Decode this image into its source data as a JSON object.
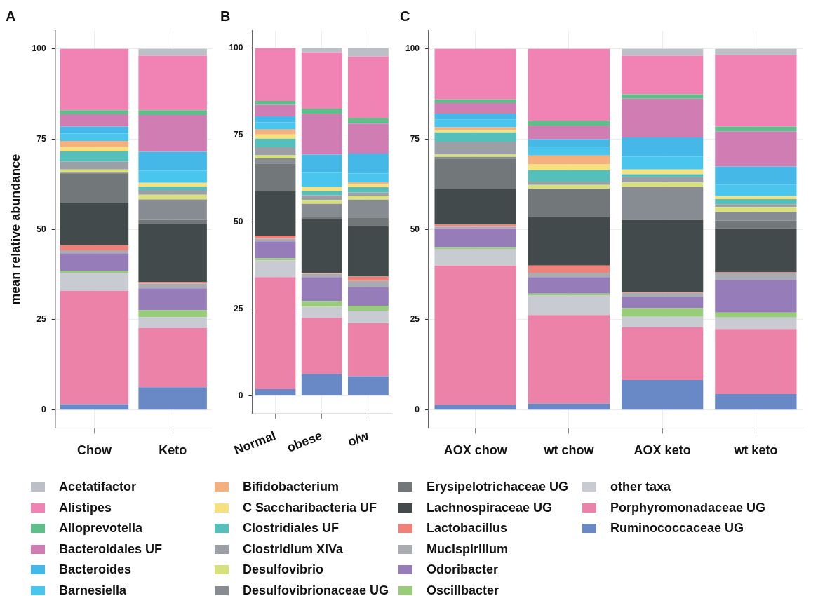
{
  "chart_data": [
    {
      "type": "bar",
      "title": "A",
      "ylabel": "mean relative abundance",
      "categories": [
        "Chow",
        "Keto"
      ],
      "stacked": true,
      "ylim": [
        -5,
        105
      ],
      "yticks": [
        0,
        25,
        50,
        75,
        100
      ],
      "grid": true,
      "legend": "bottom",
      "series": [
        {
          "name": "Ruminococcaceae UG",
          "color": "#6889c6",
          "values": [
            1.6,
            6.3
          ]
        },
        {
          "name": "Porphyromonadaceae UG",
          "color": "#ec82a8",
          "values": [
            31.4,
            16.4
          ]
        },
        {
          "name": "other taxa",
          "color": "#c8ccd2",
          "values": [
            5.0,
            3.0
          ]
        },
        {
          "name": "Oscillbacter",
          "color": "#98cb7a",
          "values": [
            0.6,
            1.9
          ]
        },
        {
          "name": "Odoribacter",
          "color": "#967cb8",
          "values": [
            4.8,
            6.1
          ]
        },
        {
          "name": "Mucispirillum",
          "color": "#a8acb0",
          "values": [
            0.8,
            1.3
          ]
        },
        {
          "name": "Lactobacillus",
          "color": "#f08078",
          "values": [
            1.4,
            0.4
          ]
        },
        {
          "name": "Lachnospiraceae UG",
          "color": "#434a4c",
          "values": [
            11.8,
            16.0
          ]
        },
        {
          "name": "Erysipelotrichaceae UG",
          "color": "#727779",
          "values": [
            8.0,
            1.2
          ]
        },
        {
          "name": "Desulfovibrionaceae UG",
          "color": "#878c93",
          "values": [
            0.3,
            5.7
          ]
        },
        {
          "name": "Desulfovibrio",
          "color": "#d8e07e",
          "values": [
            0.9,
            1.3
          ]
        },
        {
          "name": "Clostridium XIVa",
          "color": "#9aa0a6",
          "values": [
            2.2,
            1.3
          ]
        },
        {
          "name": "Clostridiales UF",
          "color": "#55c0bb",
          "values": [
            2.8,
            1.0
          ]
        },
        {
          "name": "C Saccharibacteria UF",
          "color": "#f7e07e",
          "values": [
            1.2,
            1.0
          ]
        },
        {
          "name": "Bifidobacterium",
          "color": "#f5b07e",
          "values": [
            1.7,
            0
          ]
        },
        {
          "name": "Barnesiella",
          "color": "#4ac6ee",
          "values": [
            2.1,
            3.4
          ]
        },
        {
          "name": "Bacteroides",
          "color": "#45b8e8",
          "values": [
            1.9,
            5.2
          ]
        },
        {
          "name": "Bacteroidales UF",
          "color": "#d07db4",
          "values": [
            3.4,
            10.2
          ]
        },
        {
          "name": "Alloprevotella",
          "color": "#5fbf8a",
          "values": [
            1.1,
            1.3
          ]
        },
        {
          "name": "Alistipes",
          "color": "#f083b4",
          "values": [
            17.0,
            15.1
          ]
        },
        {
          "name": "Acetatifactor",
          "color": "#bcc0c6",
          "values": [
            0,
            1.9
          ]
        }
      ]
    },
    {
      "type": "bar",
      "title": "B",
      "categories": [
        "Normal",
        "obese",
        "o/w"
      ],
      "stacked": true,
      "ylim": [
        -5,
        105
      ],
      "yticks": [
        0,
        25,
        50,
        75,
        100
      ],
      "grid": true,
      "series": [
        {
          "color": "#6889c6",
          "values": [
            1.9,
            6.3,
            5.6
          ]
        },
        {
          "color": "#ec82a8",
          "values": [
            32.2,
            16.1,
            15.3
          ]
        },
        {
          "color": "#c8ccd2",
          "values": [
            4.8,
            3.2,
            3.6
          ]
        },
        {
          "color": "#98cb7a",
          "values": [
            0.6,
            1.6,
            1.4
          ]
        },
        {
          "color": "#967cb8",
          "values": [
            4.9,
            6.9,
            5.4
          ]
        },
        {
          "color": "#a8acb0",
          "values": [
            0.8,
            1.0,
            1.7
          ]
        },
        {
          "color": "#f08078",
          "values": [
            0.9,
            0.2,
            1.3
          ]
        },
        {
          "color": "#434a4c",
          "values": [
            12.8,
            15.4,
            14.4
          ]
        },
        {
          "color": "#727779",
          "values": [
            7.9,
            0.7,
            2.4
          ]
        },
        {
          "color": "#878c93",
          "values": [
            1.5,
            3.8,
            5.3
          ]
        },
        {
          "color": "#d8e07e",
          "values": [
            0.9,
            1.1,
            1.1
          ]
        },
        {
          "color": "#9aa0a6",
          "values": [
            2.3,
            1.4,
            1.0
          ]
        },
        {
          "color": "#55c0bb",
          "values": [
            2.5,
            1.2,
            1.5
          ]
        },
        {
          "color": "#f7e07e",
          "values": [
            1.2,
            1.2,
            0.9
          ]
        },
        {
          "color": "#f5b07e",
          "values": [
            1.4,
            0,
            0.5
          ]
        },
        {
          "color": "#4ac6ee",
          "values": [
            2.1,
            4.1,
            2.6
          ]
        },
        {
          "color": "#45b8e8",
          "values": [
            1.7,
            5.2,
            5.7
          ]
        },
        {
          "color": "#d07db4",
          "values": [
            3.3,
            11.7,
            8.6
          ]
        },
        {
          "color": "#5fbf8a",
          "values": [
            1.1,
            1.5,
            1.6
          ]
        },
        {
          "color": "#f083b4",
          "values": [
            15.2,
            16.2,
            17.7
          ]
        },
        {
          "color": "#bcc0c6",
          "values": [
            0,
            1.2,
            2.4
          ]
        }
      ]
    },
    {
      "type": "bar",
      "title": "C",
      "categories": [
        "AOX chow",
        "wt chow",
        "AOX keto",
        "wt keto"
      ],
      "stacked": true,
      "ylim": [
        -5,
        105
      ],
      "yticks": [
        0,
        25,
        50,
        75,
        100
      ],
      "grid": true,
      "series": [
        {
          "color": "#6889c6",
          "values": [
            1.4,
            1.8,
            8.3,
            4.4
          ]
        },
        {
          "color": "#ec82a8",
          "values": [
            38.6,
            24.5,
            14.6,
            18.0
          ]
        },
        {
          "color": "#c8ccd2",
          "values": [
            4.6,
            5.5,
            2.9,
            3.2
          ]
        },
        {
          "color": "#98cb7a",
          "values": [
            0.5,
            0.4,
            2.4,
            1.4
          ]
        },
        {
          "color": "#967cb8",
          "values": [
            5.2,
            4.6,
            3.1,
            9.0
          ]
        },
        {
          "color": "#a8acb0",
          "values": [
            0.4,
            1.2,
            1.1,
            1.9
          ]
        },
        {
          "color": "#f08078",
          "values": [
            0.6,
            2.0,
            0.2,
            0.2
          ]
        },
        {
          "color": "#434a4c",
          "values": [
            10.0,
            13.5,
            20.0,
            12.2
          ]
        },
        {
          "color": "#727779",
          "values": [
            8.3,
            7.8,
            0,
            2.1
          ]
        },
        {
          "color": "#878c93",
          "values": [
            0.5,
            0,
            9.2,
            2.4
          ]
        },
        {
          "color": "#d8e07e",
          "values": [
            0.6,
            1.0,
            1.2,
            1.4
          ]
        },
        {
          "color": "#9aa0a6",
          "values": [
            3.6,
            0.9,
            1.5,
            0.8
          ]
        },
        {
          "color": "#55c0bb",
          "values": [
            2.6,
            3.2,
            0.8,
            1.4
          ]
        },
        {
          "color": "#f7e07e",
          "values": [
            0.6,
            1.6,
            1.3,
            0.8
          ]
        },
        {
          "color": "#f5b07e",
          "values": [
            0.8,
            2.5,
            0,
            0
          ]
        },
        {
          "color": "#4ac6ee",
          "values": [
            2.1,
            2.3,
            3.6,
            3.1
          ]
        },
        {
          "color": "#45b8e8",
          "values": [
            1.7,
            2.2,
            5.3,
            5.1
          ]
        },
        {
          "color": "#d07db4",
          "values": [
            2.9,
            3.7,
            10.7,
            9.8
          ]
        },
        {
          "color": "#5fbf8a",
          "values": [
            1.0,
            1.4,
            1.2,
            1.3
          ]
        },
        {
          "color": "#f083b4",
          "values": [
            14.0,
            19.9,
            10.7,
            19.8
          ]
        },
        {
          "color": "#bcc0c6",
          "values": [
            0,
            0,
            1.9,
            1.7
          ]
        }
      ]
    }
  ]
}
